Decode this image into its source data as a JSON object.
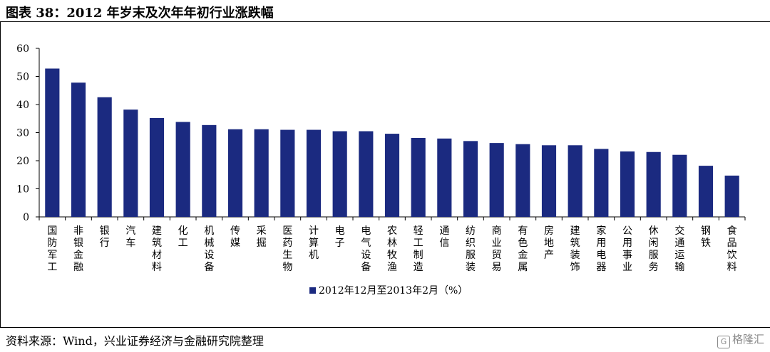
{
  "title": "图表 38：2012 年岁末及次年年初行业涨跌幅",
  "source": "资料来源：Wind，兴业证券经济与金融研究院整理",
  "watermark": "格隆汇",
  "watermark_logo": "G",
  "colors": {
    "bar": "#1b2a80",
    "axis": "#000000"
  },
  "chart_data": {
    "type": "bar",
    "title": "",
    "xlabel": "",
    "ylabel": "",
    "ylim": [
      0,
      60
    ],
    "yticks": [
      0,
      10,
      20,
      30,
      40,
      50,
      60
    ],
    "grid": false,
    "legend_position": "bottom",
    "categories": [
      "国防军工",
      "非银金融",
      "银行",
      "汽车",
      "建筑材料",
      "化工",
      "机械设备",
      "传媒",
      "采掘",
      "医药生物",
      "计算机",
      "电子",
      "电气设备",
      "农林牧渔",
      "轻工制造",
      "通信",
      "纺织服装",
      "商业贸易",
      "有色金属",
      "房地产",
      "建筑装饰",
      "家用电器",
      "公用事业",
      "休闲服务",
      "交通运输",
      "钢铁",
      "食品饮料"
    ],
    "series": [
      {
        "name": "2012年12月至2013年2月（%）",
        "values": [
          52.8,
          47.8,
          42.6,
          38.2,
          35.2,
          33.8,
          32.7,
          31.2,
          31.2,
          31.0,
          31.0,
          30.5,
          30.5,
          29.6,
          28.1,
          27.9,
          27.0,
          26.3,
          25.9,
          25.5,
          25.5,
          24.2,
          23.3,
          23.1,
          22.1,
          18.2,
          14.7
        ]
      }
    ]
  }
}
